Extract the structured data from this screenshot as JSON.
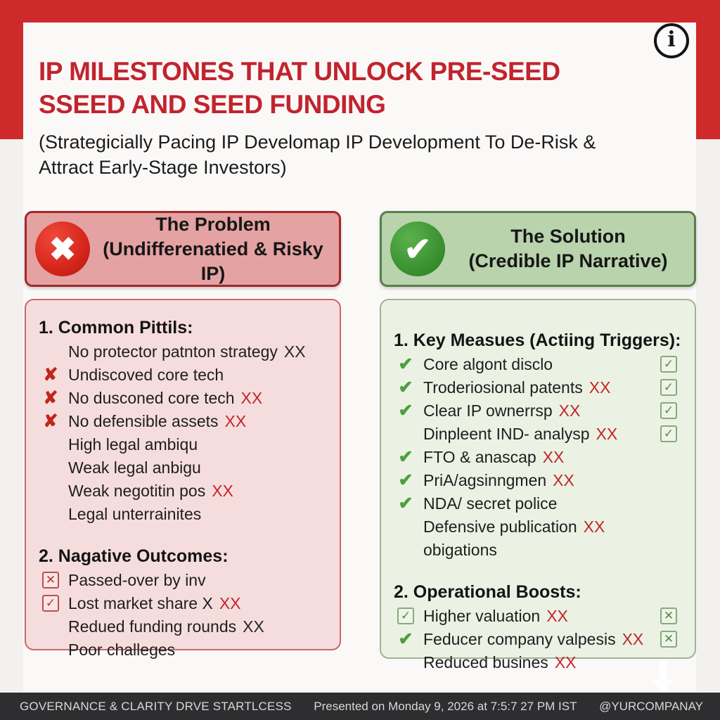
{
  "page": {
    "title_line1": "IP MILESTONES THAT UNLOCK PRE-SEED",
    "title_line2": "SSEED AND SEED FUNDING",
    "subtitle": "(Strategicially Pacing IP Develomap IP Development To De-Risk & Attract Early-Stage Investors)",
    "info_icon": "i"
  },
  "colors": {
    "accent_red": "#ce2a2c",
    "title_red": "#c1242e",
    "problem_header_bg": "#e5a2a2",
    "problem_body_bg": "#f6dddd",
    "solution_header_bg": "#b9d3ac",
    "solution_body_bg": "#ebf2e4",
    "footer_bg": "#2e2e30",
    "xx_red": "#c2262a",
    "check_green": "#4d9e3f",
    "cross_red": "#c1261c"
  },
  "problem": {
    "icon_glyph": "✖",
    "title": "The Problem",
    "subtitle": "(Undifferenatied & Risky IP)",
    "sections": [
      {
        "heading": "1. Common Pittils:",
        "items": [
          {
            "left": "none",
            "text": "No protector patnton strategy",
            "xx": "XX",
            "xx_style": "dark",
            "right": "none"
          },
          {
            "left": "x",
            "text": "Undiscoved core tech",
            "xx": "",
            "right": "none"
          },
          {
            "left": "x",
            "text": "No dusconed core tech",
            "xx": "XX",
            "xx_style": "red",
            "right": "none"
          },
          {
            "left": "x",
            "text": "No defensible assets",
            "xx": "XX",
            "xx_style": "red",
            "right": "none"
          },
          {
            "left": "none",
            "text": "High legal ambiqu",
            "xx": "",
            "right": "none"
          },
          {
            "left": "none",
            "text": "Weak legal anbigu",
            "xx": "",
            "right": "none"
          },
          {
            "left": "none",
            "text": "Weak negotitin pos",
            "xx": "XX",
            "xx_style": "red",
            "right": "none"
          },
          {
            "left": "none",
            "text": "Legal unterrainites",
            "xx": "",
            "right": "none"
          }
        ]
      },
      {
        "heading": "2. Nagative Outcomes:",
        "items": [
          {
            "left": "box-x",
            "text": "Passed-over by inv",
            "xx": "",
            "right": "none"
          },
          {
            "left": "box-check",
            "text": "Lost market share X",
            "xx": "XX",
            "xx_style": "red",
            "right": "none"
          },
          {
            "left": "none",
            "text": "Redued funding rounds",
            "xx": "XX",
            "xx_style": "dark",
            "right": "none"
          },
          {
            "left": "none",
            "text": "Poor challeges",
            "xx": "",
            "right": "none"
          }
        ]
      }
    ]
  },
  "solution": {
    "icon_glyph": "✔",
    "title": "The Solution",
    "subtitle": "(Credible IP Narrative)",
    "sections": [
      {
        "heading": "1. Key Measues (Actiing Triggers):",
        "items": [
          {
            "left": "check",
            "text": "Core algont disclo",
            "xx": "",
            "right": "gbox-check"
          },
          {
            "left": "check",
            "text": "Troderiosional patents",
            "xx": "XX",
            "xx_style": "red",
            "right": "gbox-check"
          },
          {
            "left": "check",
            "text": "Clear IP ownerrsp",
            "xx": "XX",
            "xx_style": "red",
            "right": "gbox-check"
          },
          {
            "left": "none",
            "text": "Dinpleent IND- analysp",
            "xx": "XX",
            "xx_style": "red",
            "right": "gbox-check"
          },
          {
            "left": "check",
            "text": "FTO & anascap",
            "xx": "XX",
            "xx_style": "red",
            "right": "none"
          },
          {
            "left": "check",
            "text": "PriA/agsinngmen",
            "xx": "XX",
            "xx_style": "red",
            "right": "none"
          },
          {
            "left": "check",
            "text": "NDA/ secret police",
            "xx": "",
            "right": "none"
          },
          {
            "left": "none",
            "text": "Defensive publication",
            "xx": "XX",
            "xx_style": "red",
            "right": "none"
          },
          {
            "left": "none",
            "text": "obigations",
            "xx": "",
            "right": "none"
          }
        ]
      },
      {
        "heading": "2. Operational Boosts:",
        "items": [
          {
            "left": "gbox-check",
            "text": "Higher valuation",
            "xx": "XX",
            "xx_style": "red",
            "right": "gbox-x"
          },
          {
            "left": "check",
            "text": "Feducer company valpesis",
            "xx": "XX",
            "xx_style": "red",
            "right": "gbox-x"
          },
          {
            "left": "none",
            "text": "Reduced busines",
            "xx": "XX",
            "xx_style": "red",
            "right": "none"
          }
        ]
      }
    ]
  },
  "footer": {
    "left": "GOVERNANCE & CLARITY DRVE STARTLCESS",
    "center": "Presented on Monday 9, 2026 at 7:5:7 27 PM IST",
    "right": "@YURCOMPANAY"
  }
}
